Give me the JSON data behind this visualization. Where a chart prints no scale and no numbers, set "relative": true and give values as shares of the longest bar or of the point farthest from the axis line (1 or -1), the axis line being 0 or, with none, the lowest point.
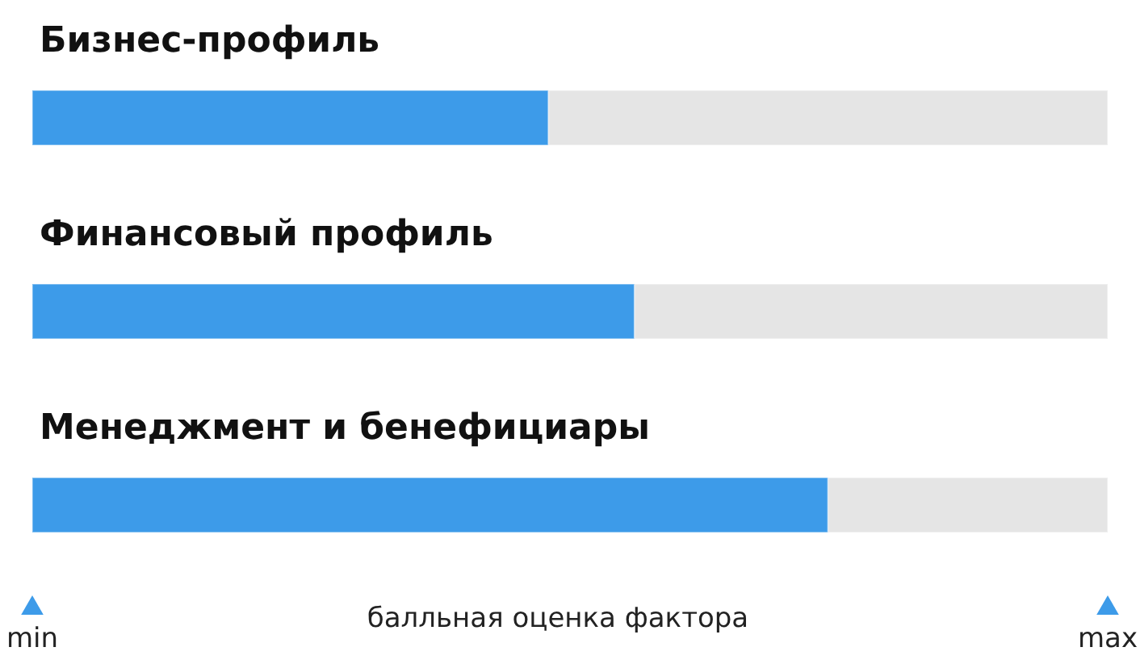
{
  "chart_data": {
    "type": "bar",
    "orientation": "horizontal",
    "stacked": true,
    "relative": true,
    "categories": [
      "Бизнес-профиль",
      "Финансовый профиль",
      "Менеджмент и бенефициары"
    ],
    "series": [
      {
        "color": "#3d9be9",
        "values": [
          0.48,
          0.56,
          0.74
        ]
      },
      {
        "color": "#e5e5e5",
        "values": [
          0.52,
          0.44,
          0.26
        ]
      }
    ],
    "xlabel": "балльная оценка фактора",
    "annotations": [
      "min",
      "max"
    ]
  }
}
